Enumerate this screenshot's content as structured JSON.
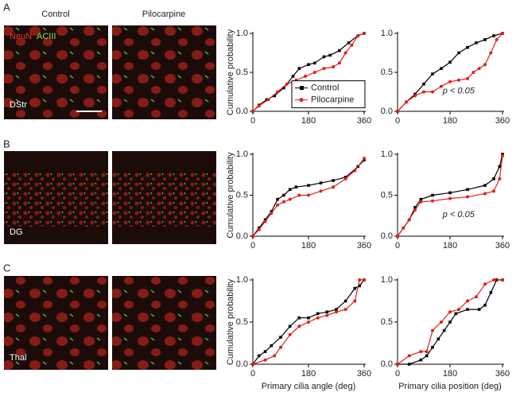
{
  "figure": {
    "panels": [
      "A",
      "B",
      "C"
    ],
    "columns": [
      "Control",
      "Pilocarpine"
    ],
    "stain_labels": [
      "NeuN",
      "ACIII"
    ],
    "regions": [
      "DStr",
      "DG",
      "Thal"
    ]
  },
  "chart_data": [
    {
      "type": "line",
      "ylabel": "Cumulative probability",
      "xlim": [
        0,
        360
      ],
      "ylim": [
        0,
        1
      ],
      "xticks": [
        0,
        180,
        360
      ],
      "yticks": [
        {
          "value": 0,
          "label": "0.0"
        },
        0.5,
        {
          "value": 1,
          "label": "1.0"
        }
      ],
      "legend": "right",
      "series": [
        {
          "name": "Control",
          "color": "#000000",
          "x": [
            0,
            20,
            45,
            70,
            100,
            130,
            150,
            180,
            200,
            230,
            250,
            280,
            310,
            340,
            360
          ],
          "values": [
            0,
            0.08,
            0.15,
            0.2,
            0.3,
            0.45,
            0.55,
            0.6,
            0.62,
            0.7,
            0.72,
            0.78,
            0.88,
            0.97,
            1.0
          ]
        },
        {
          "name": "Pilocarpine",
          "color": "#e0201b",
          "x": [
            0,
            20,
            50,
            80,
            110,
            140,
            170,
            200,
            230,
            260,
            280,
            300,
            320,
            340,
            360
          ],
          "values": [
            0,
            0.07,
            0.15,
            0.25,
            0.35,
            0.4,
            0.45,
            0.5,
            0.55,
            0.57,
            0.62,
            0.75,
            0.85,
            0.97,
            1.0
          ]
        }
      ]
    },
    {
      "type": "line",
      "annotation": "p < 0.05",
      "xlim": [
        0,
        360
      ],
      "ylim": [
        0,
        1
      ],
      "xticks": [
        0,
        180,
        360
      ],
      "yticks": [
        {
          "value": 0,
          "label": "0.0"
        },
        0.5,
        {
          "value": 1,
          "label": "1.0"
        }
      ],
      "series": [
        {
          "name": "Control",
          "color": "#000000",
          "x": [
            0,
            30,
            60,
            90,
            120,
            150,
            180,
            210,
            240,
            270,
            300,
            330,
            360
          ],
          "values": [
            0,
            0.12,
            0.22,
            0.35,
            0.48,
            0.55,
            0.63,
            0.75,
            0.82,
            0.88,
            0.92,
            0.97,
            1.0
          ]
        },
        {
          "name": "Pilocarpine",
          "color": "#e0201b",
          "x": [
            0,
            30,
            60,
            90,
            120,
            150,
            180,
            210,
            240,
            260,
            280,
            300,
            320,
            340,
            360
          ],
          "values": [
            0,
            0.12,
            0.2,
            0.25,
            0.25,
            0.32,
            0.38,
            0.4,
            0.42,
            0.5,
            0.55,
            0.6,
            0.75,
            0.92,
            1.0
          ]
        }
      ]
    },
    {
      "type": "line",
      "ylabel": "Cumulative probability",
      "xlim": [
        0,
        360
      ],
      "ylim": [
        0,
        1
      ],
      "xticks": [
        0,
        180,
        360
      ],
      "yticks": [
        {
          "value": 0,
          "label": "0.0"
        },
        0.5,
        {
          "value": 1,
          "label": "1.0"
        }
      ],
      "series": [
        {
          "name": "Control",
          "color": "#000000",
          "x": [
            0,
            20,
            40,
            60,
            80,
            100,
            120,
            140,
            180,
            220,
            260,
            300,
            340,
            360
          ],
          "values": [
            0,
            0.1,
            0.2,
            0.3,
            0.45,
            0.5,
            0.57,
            0.6,
            0.62,
            0.65,
            0.68,
            0.72,
            0.85,
            0.93
          ]
        },
        {
          "name": "Pilocarpine",
          "color": "#e0201b",
          "x": [
            0,
            20,
            40,
            60,
            80,
            100,
            120,
            150,
            180,
            220,
            260,
            300,
            330,
            360
          ],
          "values": [
            0,
            0.08,
            0.18,
            0.28,
            0.38,
            0.42,
            0.45,
            0.5,
            0.5,
            0.55,
            0.6,
            0.7,
            0.8,
            0.95
          ]
        }
      ]
    },
    {
      "type": "line",
      "annotation": "p < 0.05",
      "xlim": [
        0,
        360
      ],
      "ylim": [
        0,
        1
      ],
      "xticks": [
        0,
        180,
        360
      ],
      "yticks": [
        {
          "value": 0,
          "label": "0.0"
        },
        0.5,
        {
          "value": 1,
          "label": "1.0"
        }
      ],
      "series": [
        {
          "name": "Control",
          "color": "#000000",
          "x": [
            0,
            20,
            40,
            60,
            80,
            120,
            180,
            240,
            300,
            330,
            350,
            360
          ],
          "values": [
            0,
            0.1,
            0.2,
            0.35,
            0.45,
            0.5,
            0.53,
            0.57,
            0.62,
            0.7,
            0.85,
            1.0
          ]
        },
        {
          "name": "Pilocarpine",
          "color": "#e0201b",
          "x": [
            0,
            20,
            40,
            60,
            80,
            120,
            180,
            240,
            300,
            330,
            350,
            360
          ],
          "values": [
            0,
            0.1,
            0.2,
            0.32,
            0.42,
            0.43,
            0.46,
            0.48,
            0.52,
            0.55,
            0.7,
            0.98
          ]
        }
      ]
    },
    {
      "type": "line",
      "ylabel": "Cumulative probability",
      "xlabel": "Primary cilia angle (deg)",
      "xlim": [
        0,
        360
      ],
      "ylim": [
        0,
        1
      ],
      "xticks": [
        0,
        180,
        360
      ],
      "yticks": [
        {
          "value": 0,
          "label": "0.0"
        },
        0.5,
        {
          "value": 1,
          "label": "1.0"
        }
      ],
      "series": [
        {
          "name": "Control",
          "color": "#000000",
          "x": [
            0,
            20,
            40,
            60,
            90,
            120,
            150,
            180,
            210,
            240,
            270,
            300,
            330,
            345,
            360
          ],
          "values": [
            0,
            0.1,
            0.15,
            0.22,
            0.32,
            0.45,
            0.55,
            0.55,
            0.6,
            0.62,
            0.65,
            0.75,
            0.9,
            0.93,
            1.0
          ]
        },
        {
          "name": "Pilocarpine",
          "color": "#e0201b",
          "x": [
            0,
            40,
            70,
            90,
            120,
            150,
            180,
            210,
            240,
            270,
            300,
            330,
            345,
            360
          ],
          "values": [
            0,
            0.05,
            0.1,
            0.2,
            0.35,
            0.45,
            0.5,
            0.55,
            0.58,
            0.62,
            0.65,
            0.75,
            1.0,
            1.0
          ]
        }
      ]
    },
    {
      "type": "line",
      "xlabel": "Primary cilia position (deg)",
      "xlim": [
        0,
        360
      ],
      "ylim": [
        0,
        1
      ],
      "xticks": [
        0,
        180,
        360
      ],
      "yticks": [
        {
          "value": 0,
          "label": "0.0"
        },
        0.5,
        {
          "value": 1,
          "label": "1.0"
        }
      ],
      "series": [
        {
          "name": "Control",
          "color": "#000000",
          "x": [
            0,
            40,
            80,
            100,
            120,
            140,
            160,
            180,
            200,
            240,
            280,
            300,
            320,
            340,
            360
          ],
          "values": [
            0,
            0,
            0.05,
            0.1,
            0.2,
            0.3,
            0.4,
            0.5,
            0.6,
            0.65,
            0.65,
            0.7,
            0.85,
            1.0,
            1.0
          ]
        },
        {
          "name": "Pilocarpine",
          "color": "#e0201b",
          "x": [
            0,
            40,
            80,
            100,
            120,
            150,
            180,
            210,
            240,
            270,
            300,
            330,
            360
          ],
          "values": [
            0,
            0.1,
            0.15,
            0.15,
            0.4,
            0.5,
            0.62,
            0.65,
            0.75,
            0.8,
            0.95,
            1.0,
            1.0
          ]
        }
      ]
    }
  ]
}
